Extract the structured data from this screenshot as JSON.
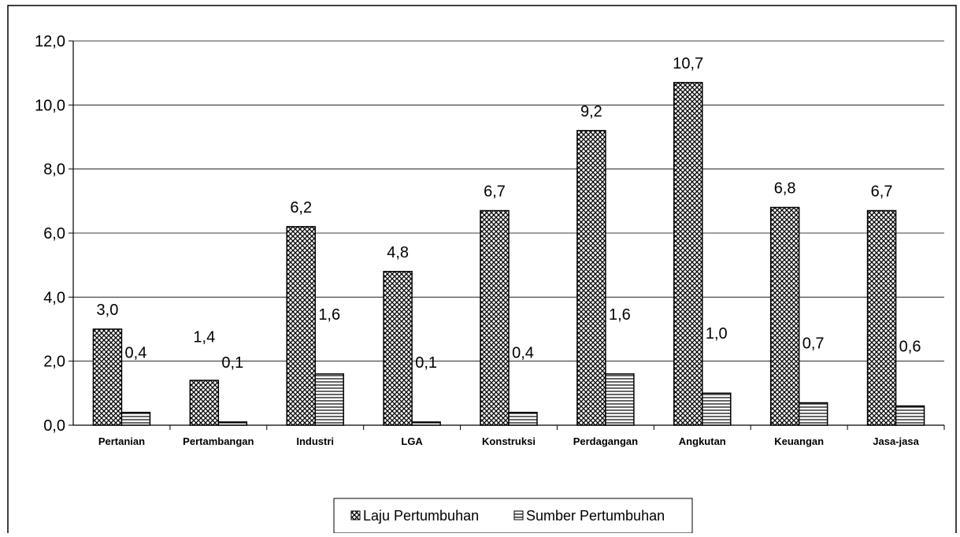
{
  "chart_data": {
    "type": "bar",
    "title": "",
    "xlabel": "",
    "ylabel": "",
    "ylim": [
      0,
      12
    ],
    "yticks": [
      "0,0",
      "2,0",
      "4,0",
      "6,0",
      "8,0",
      "10,0",
      "12,0"
    ],
    "ytick_values": [
      0,
      2,
      4,
      6,
      8,
      10,
      12
    ],
    "grid": true,
    "legend_position": "bottom",
    "categories": [
      "Pertanian",
      "Pertambangan",
      "Industri",
      "LGA",
      "Konstruksi",
      "Perdagangan",
      "Angkutan",
      "Keuangan",
      "Jasa-jasa"
    ],
    "series": [
      {
        "name": "Laju Pertumbuhan",
        "pattern": "crosshatch",
        "values": [
          3.0,
          1.4,
          6.2,
          4.8,
          6.7,
          9.2,
          10.7,
          6.8,
          6.7
        ],
        "labels": [
          "3,0",
          "1,4",
          "6,2",
          "4,8",
          "6,7",
          "9,2",
          "10,7",
          "6,8",
          "6,7"
        ]
      },
      {
        "name": "Sumber Pertumbuhan",
        "pattern": "horizontal-lines",
        "values": [
          0.4,
          0.1,
          1.6,
          0.1,
          0.4,
          1.6,
          1.0,
          0.7,
          0.6
        ],
        "labels": [
          "0,4",
          "0,1",
          "1,6",
          "0,1",
          "0,4",
          "1,6",
          "1,0",
          "0,7",
          "0,6"
        ]
      }
    ]
  }
}
